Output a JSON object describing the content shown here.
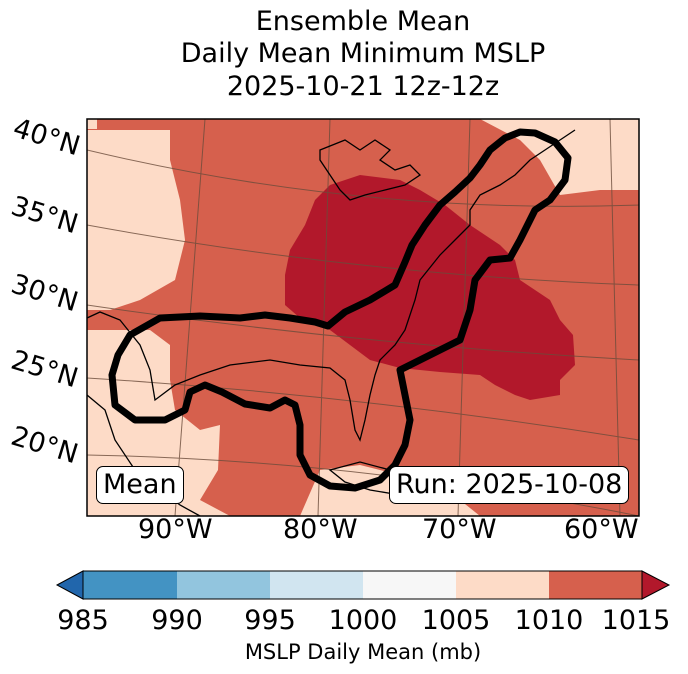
{
  "title": {
    "line1": "Ensemble Mean",
    "line2": "Daily Mean Minimum MSLP",
    "line3": "2025-10-21 12z-12z"
  },
  "map": {
    "lat_labels": [
      "40°N",
      "35°N",
      "30°N",
      "25°N",
      "20°N"
    ],
    "lon_labels": [
      "90°W",
      "80°W",
      "70°W",
      "60°W"
    ],
    "mean_label": "Mean",
    "run_label": "Run: 2025-10-08",
    "contour_description": "ensemble probability contour (thick black)"
  },
  "colorbar": {
    "ticks": [
      "985",
      "990",
      "995",
      "1000",
      "1005",
      "1010",
      "1015"
    ],
    "label": "MSLP Daily Mean (mb)",
    "colors": [
      "#4393c3",
      "#92c5de",
      "#d1e5f0",
      "#f7f7f7",
      "#fddbc7",
      "#d6604d",
      "#b2182b",
      "#2166ac"
    ]
  },
  "palette": {
    "c1000_1005": "#fddbc7",
    "c1005_1010": "#d6604d",
    "c1010_1015": "#b2182b",
    "land_line": "#000000",
    "grid": "#6b4c3b"
  }
}
